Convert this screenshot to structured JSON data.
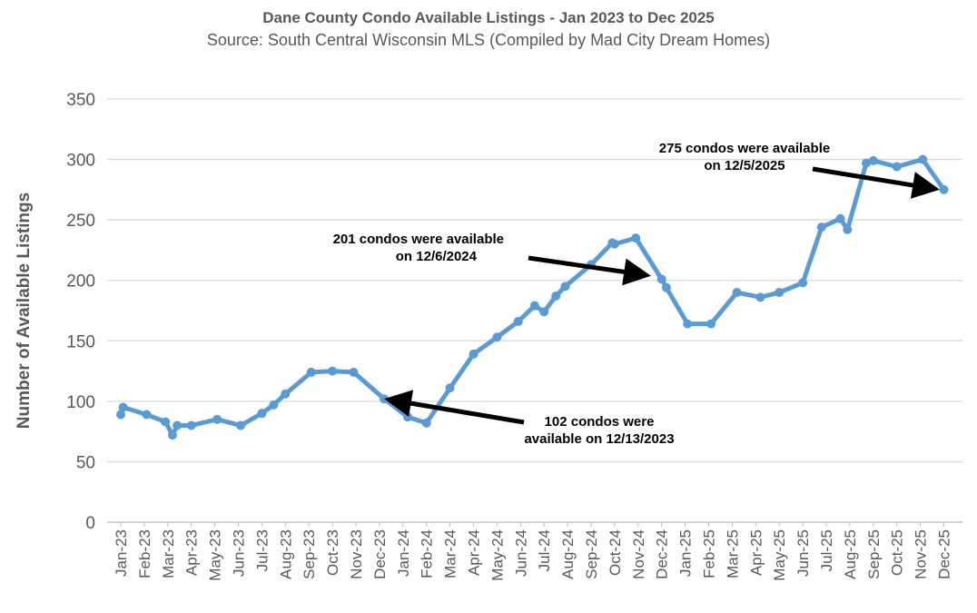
{
  "chart_data": {
    "type": "line",
    "title": "Dane County Condo Available Listings - Jan 2023 to Dec 2025",
    "subtitle": "Source: South Central Wisconsin MLS (Compiled by Mad City Dream Homes)",
    "xlabel": "",
    "ylabel": "Number of Available Listings",
    "ylim": [
      0,
      350
    ],
    "yticks": [
      "0",
      "50",
      "100",
      "150",
      "200",
      "250",
      "300",
      "350"
    ],
    "xticks": [
      "Jan-23",
      "Feb-23",
      "Mar-23",
      "Apr-23",
      "May-23",
      "Jun-23",
      "Jul-23",
      "Aug-23",
      "Sep-23",
      "Oct-23",
      "Nov-23",
      "Dec-23",
      "Jan-24",
      "Feb-24",
      "Mar-24",
      "Apr-24",
      "May-24",
      "Jun-24",
      "Jul-24",
      "Aug-24",
      "Sep-24",
      "Oct-24",
      "Nov-24",
      "Dec-24",
      "Jan-25",
      "Feb-25",
      "Mar-25",
      "Apr-25",
      "May-25",
      "Jun-25",
      "Jul-25",
      "Aug-25",
      "Sep-25",
      "Oct-25",
      "Nov-25",
      "Dec-25"
    ],
    "grid": true,
    "line_color": "#5B9BD5",
    "series": [
      {
        "name": "Available Listings",
        "x_months_from_jan23": [
          0,
          0.1,
          1.1,
          1.9,
          2.2,
          2.4,
          3.0,
          4.1,
          5.1,
          6.0,
          6.5,
          7.0,
          8.1,
          9.0,
          9.9,
          11.2,
          12.2,
          13.0,
          14.0,
          15.0,
          16.0,
          16.9,
          17.6,
          18.0,
          18.5,
          18.9,
          20.0,
          20.9,
          21.0,
          21.9,
          23.0,
          23.2,
          24.1,
          25.1,
          26.2,
          27.2,
          28.0,
          29.0,
          29.8,
          30.6,
          30.9,
          31.7,
          32.0,
          33.0,
          34.1,
          35.0
        ],
        "values": [
          89,
          95,
          89,
          83,
          72,
          80,
          80,
          85,
          80,
          90,
          97,
          106,
          124,
          125,
          124,
          102,
          87,
          82,
          111,
          139,
          153,
          166,
          179,
          174,
          187,
          195,
          213,
          231,
          230,
          235,
          201,
          194,
          164,
          164,
          190,
          186,
          190,
          198,
          244,
          251,
          242,
          297,
          299,
          294,
          300,
          275
        ]
      }
    ],
    "annotations": [
      {
        "lines": [
          "102 condos were",
          "available on 12/13/2023"
        ],
        "x_month": 11.2,
        "value": 102
      },
      {
        "lines": [
          "201 condos were available",
          "on 12/6/2024"
        ],
        "x_month": 23.0,
        "value": 201
      },
      {
        "lines": [
          "275 condos were available",
          "on 12/5/2025"
        ],
        "x_month": 35.0,
        "value": 275
      }
    ]
  }
}
